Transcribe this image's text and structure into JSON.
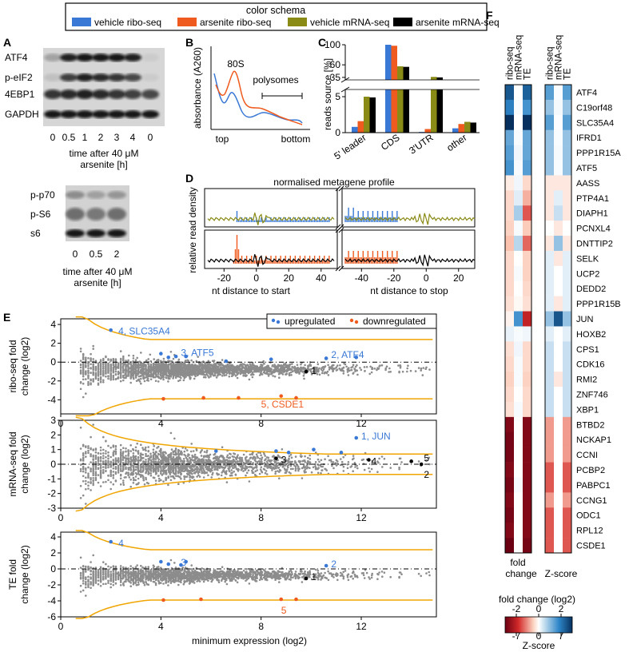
{
  "legend": {
    "title": "color schema",
    "items": [
      {
        "label": "vehicle ribo-seq",
        "color": "#3a78d6"
      },
      {
        "label": "arsenite ribo-seq",
        "color": "#ef5a1e"
      },
      {
        "label": "vehicle mRNA-seq",
        "color": "#8a8a17"
      },
      {
        "label": "arsenite mRNA-seq",
        "color": "#000000"
      }
    ]
  },
  "panel_a": {
    "letter": "A",
    "top_blot": {
      "rows": [
        "ATF4",
        "p-eIF2",
        "4EBP1",
        "GAPDH"
      ],
      "lanes": [
        "0",
        "0.5",
        "1",
        "2",
        "3",
        "4",
        "0"
      ],
      "xlabel_line1": "time after 40 μM",
      "xlabel_line2": "arsenite [h]"
    },
    "bottom_blot": {
      "rows": [
        "p-p70",
        "p-S6",
        "s6"
      ],
      "lanes": [
        "0",
        "0.5",
        "2"
      ],
      "xlabel_line1": "time after 40 μM",
      "xlabel_line2": "arsenite [h]"
    }
  },
  "panel_b": {
    "letter": "B",
    "ylabel": "absorbance (A260)",
    "peak_label": "80S",
    "poly_label": "polysomes",
    "x_start": "top",
    "x_end": "bottom"
  },
  "panel_c": {
    "letter": "C",
    "ylabel": "reads source [%]",
    "yticks_top": [
      "100",
      "60",
      "35"
    ],
    "yticks_bottom": [
      "5",
      "0"
    ],
    "categories": [
      "5' leader",
      "CDS",
      "3'UTR",
      "other"
    ]
  },
  "panel_d": {
    "letter": "D",
    "title": "normalised metagene profile",
    "ylabel": "relative read density",
    "xlabel_left": "nt distance to start",
    "xlabel_right": "nt distance to stop",
    "ticks_left": [
      "-20",
      "0",
      "20",
      "40"
    ],
    "ticks_right": [
      "-40",
      "-20",
      "0",
      "20"
    ]
  },
  "panel_e": {
    "letter": "E",
    "legend_up": "upregulated",
    "legend_down": "downregulated",
    "xlabel": "minimum expression (log2)",
    "xticks": [
      "0",
      "4",
      "8",
      "12"
    ],
    "plots": [
      {
        "ylabel1": "ribo-seq fold",
        "ylabel2": "change (log2)",
        "yticks": [
          "4",
          "2",
          "0",
          "-2",
          "-4"
        ],
        "annotations": [
          "4, SLC35A4",
          "3, ATF5",
          "2, ATF4",
          "1",
          "5, CSDE1"
        ]
      },
      {
        "ylabel1": "mRNA-seq fold",
        "ylabel2": "change (log2)",
        "yticks": [
          "3",
          "2",
          "1",
          "0",
          "-1",
          "-2",
          "-3"
        ],
        "annotations": [
          "1, JUN",
          "3",
          "4",
          "5",
          "2"
        ]
      },
      {
        "ylabel1": "TE fold",
        "ylabel2": "change (log2)",
        "yticks": [
          "4",
          "2",
          "0",
          "-2",
          "-4",
          "-6"
        ],
        "annotations": [
          "4",
          "3",
          "2",
          "1",
          "5"
        ]
      }
    ]
  },
  "panel_f": {
    "letter": "F",
    "col_labels_left": [
      "ribo-seq",
      "mRNA-seq",
      "TE"
    ],
    "col_labels_right": [
      "ribo-seq",
      "mRNA-seq",
      "TE"
    ],
    "genes": [
      "ATF4",
      "C19orf48",
      "SLC35A4",
      "IFRD1",
      "PPP1R15A",
      "ATF5",
      "AASS",
      "PTP4A1",
      "DIAPH1",
      "PCNXL4",
      "DNTTIP2",
      "SELK",
      "UCP2",
      "DEDD2",
      "PPP1R15B",
      "JUN",
      "HOXB2",
      "CPS1",
      "CDK16",
      "RMI2",
      "ZNF746",
      "XBP1",
      "BTBD2",
      "NCKAP1",
      "CCNI",
      "PCBP2",
      "PABPC1",
      "CCNG1",
      "ODC1",
      "RPL12",
      "CSDE1"
    ],
    "caption_left1": "fold",
    "caption_left2": "change",
    "caption_right": "Z-score",
    "colorbar_title": "fold change (log2)",
    "colorbar_top_ticks": [
      "-2",
      "0",
      "2"
    ],
    "colorbar_bottom_ticks": [
      "-7",
      "0",
      "7"
    ],
    "colorbar_bottom_label": "Z-score"
  },
  "chart_data": [
    {
      "type": "bar",
      "title": "reads source",
      "ylabel": "reads source [%]",
      "categories": [
        "5' leader",
        "CDS",
        "3'UTR",
        "other"
      ],
      "series": [
        {
          "name": "vehicle ribo-seq",
          "values": [
            0.8,
            100,
            0.1,
            0.6
          ]
        },
        {
          "name": "arsenite ribo-seq",
          "values": [
            1.6,
            98,
            0.5,
            1.2
          ]
        },
        {
          "name": "vehicle mRNA-seq",
          "values": [
            5.0,
            57,
            36,
            1.5
          ]
        },
        {
          "name": "arsenite mRNA-seq",
          "values": [
            4.9,
            56,
            35,
            1.4
          ]
        }
      ]
    },
    {
      "type": "heatmap",
      "title": "fold change (log2)",
      "columns": [
        "ribo-seq",
        "mRNA-seq",
        "TE"
      ],
      "rows": [
        "ATF4",
        "C19orf48",
        "SLC35A4",
        "IFRD1",
        "PPP1R15A",
        "ATF5",
        "AASS",
        "PTP4A1",
        "DIAPH1",
        "PCNXL4",
        "DNTTIP2",
        "SELK",
        "UCP2",
        "DEDD2",
        "PPP1R15B",
        "JUN",
        "HOXB2",
        "CPS1",
        "CDK16",
        "RMI2",
        "ZNF746",
        "XBP1",
        "BTBD2",
        "NCKAP1",
        "CCNI",
        "PCBP2",
        "PABPC1",
        "CCNG1",
        "ODC1",
        "RPL12",
        "CSDE1"
      ],
      "values": [
        [
          2.2,
          0.0,
          2.1
        ],
        [
          1.8,
          0.1,
          1.6
        ],
        [
          3.2,
          0.0,
          3.1
        ],
        [
          1.4,
          0.1,
          1.4
        ],
        [
          1.5,
          0.2,
          1.4
        ],
        [
          1.6,
          0.1,
          1.5
        ],
        [
          -0.3,
          0.2,
          -0.6
        ],
        [
          -0.6,
          0.4,
          -1.0
        ],
        [
          -0.6,
          1.0,
          -1.5
        ],
        [
          -0.7,
          0.1,
          -0.8
        ],
        [
          -0.9,
          0.9,
          -1.4
        ],
        [
          -0.6,
          0.0,
          -0.7
        ],
        [
          -0.6,
          0.1,
          -0.7
        ],
        [
          -0.6,
          0.0,
          -0.6
        ],
        [
          -0.5,
          -0.1,
          -0.5
        ],
        [
          -0.2,
          1.6,
          -1.9
        ],
        [
          0.3,
          0.1,
          0.2
        ],
        [
          -0.5,
          0.2,
          -0.6
        ],
        [
          -0.6,
          0.1,
          -0.6
        ],
        [
          -0.7,
          0.1,
          -0.7
        ],
        [
          -0.6,
          0.0,
          -0.6
        ],
        [
          -0.5,
          0.1,
          -0.6
        ],
        [
          -2.4,
          0.0,
          -2.4
        ],
        [
          -2.5,
          0.0,
          -2.4
        ],
        [
          -2.5,
          0.0,
          -2.4
        ],
        [
          -2.4,
          0.0,
          -2.4
        ],
        [
          -2.5,
          0.1,
          -2.4
        ],
        [
          -2.4,
          0.0,
          -2.4
        ],
        [
          -2.5,
          0.0,
          -2.4
        ],
        [
          -2.4,
          0.0,
          -2.4
        ],
        [
          -2.6,
          0.0,
          -2.5
        ]
      ],
      "zscore_values": [
        [
          4,
          0.2,
          4
        ],
        [
          3,
          0.4,
          3
        ],
        [
          4,
          0.1,
          4
        ],
        [
          3,
          0.2,
          3
        ],
        [
          3,
          0.3,
          3
        ],
        [
          3,
          0.2,
          3
        ],
        [
          -1,
          -1,
          -1
        ],
        [
          -1,
          1,
          -1
        ],
        [
          -1,
          2,
          -1
        ],
        [
          0,
          -1,
          0
        ],
        [
          -1,
          3,
          -1
        ],
        [
          1,
          -1,
          1
        ],
        [
          1,
          0,
          1
        ],
        [
          1,
          0,
          1
        ],
        [
          1,
          -1,
          1
        ],
        [
          3,
          6,
          3
        ],
        [
          1,
          0,
          1
        ],
        [
          2,
          0,
          2
        ],
        [
          2,
          0,
          2
        ],
        [
          2,
          -1,
          2
        ],
        [
          2,
          0,
          2
        ],
        [
          2,
          0,
          2
        ],
        [
          -3,
          0,
          -3
        ],
        [
          -3,
          0,
          -3
        ],
        [
          -3,
          0,
          -3
        ],
        [
          -4,
          0,
          -4
        ],
        [
          -4,
          0,
          -4
        ],
        [
          -3,
          0,
          -3
        ],
        [
          -4,
          0,
          -4
        ],
        [
          -4,
          0,
          -4
        ],
        [
          -4,
          0,
          -4
        ]
      ]
    }
  ]
}
